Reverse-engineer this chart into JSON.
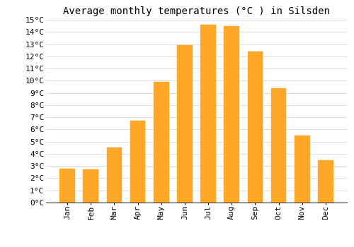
{
  "title": "Average monthly temperatures (°C ) in Silsden",
  "months": [
    "Jan",
    "Feb",
    "Mar",
    "Apr",
    "May",
    "Jun",
    "Jul",
    "Aug",
    "Sep",
    "Oct",
    "Nov",
    "Dec"
  ],
  "values": [
    2.8,
    2.7,
    4.5,
    6.7,
    9.9,
    12.9,
    14.6,
    14.5,
    12.4,
    9.4,
    5.5,
    3.5
  ],
  "bar_color": "#FFA726",
  "bar_edge_color": "#FFA726",
  "ylim": [
    0,
    15
  ],
  "ytick_step": 1,
  "background_color": "#ffffff",
  "grid_color": "#dddddd",
  "title_fontsize": 10,
  "tick_fontsize": 8,
  "font_family": "monospace"
}
